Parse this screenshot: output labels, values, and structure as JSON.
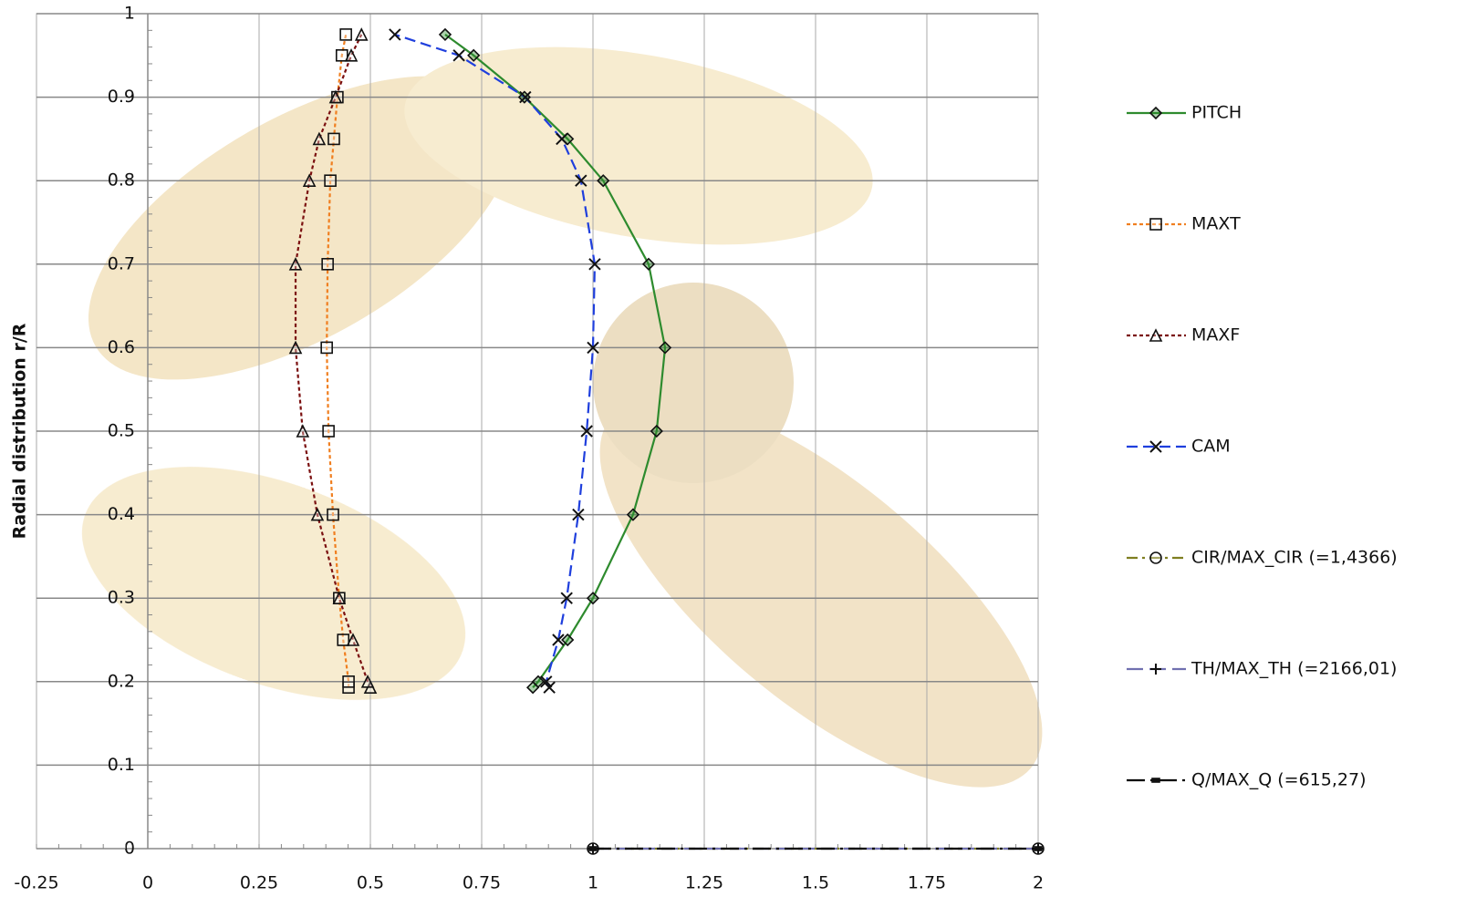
{
  "chart_data": {
    "type": "line",
    "y_label": "Radial distribution r/R",
    "xlim": [
      -0.25,
      2
    ],
    "xticks": [
      -0.25,
      0,
      0.25,
      0.5,
      0.75,
      1,
      1.25,
      1.5,
      1.75,
      2
    ],
    "ylim": [
      0,
      1
    ],
    "yticks": [
      0,
      0.1,
      0.2,
      0.3,
      0.4,
      0.5,
      0.6,
      0.7,
      0.8,
      0.9,
      1
    ],
    "grid": true,
    "legend": "right",
    "series": [
      {
        "name": "PITCH",
        "color": "#2e8b2e",
        "marker": "diamond",
        "dash": "solid",
        "x": [
          0.865,
          0.877,
          0.943,
          1.0,
          1.09,
          1.143,
          1.162,
          1.125,
          1.023,
          0.943,
          0.846,
          0.732,
          0.668
        ],
        "values": [
          0.193,
          0.2,
          0.25,
          0.3,
          0.4,
          0.5,
          0.6,
          0.7,
          0.8,
          0.85,
          0.9,
          0.95,
          0.975
        ]
      },
      {
        "name": "MAXT",
        "color": "#f07f20",
        "marker": "square",
        "dash": "dot",
        "x": [
          0.451,
          0.451,
          0.439,
          0.43,
          0.416,
          0.406,
          0.402,
          0.404,
          0.41,
          0.418,
          0.426,
          0.436,
          0.445
        ],
        "values": [
          0.193,
          0.2,
          0.25,
          0.3,
          0.4,
          0.5,
          0.6,
          0.7,
          0.8,
          0.85,
          0.9,
          0.95,
          0.975
        ]
      },
      {
        "name": "MAXF",
        "color": "#7b1010",
        "marker": "triangle",
        "dash": "dot",
        "x": [
          0.5,
          0.494,
          0.461,
          0.43,
          0.381,
          0.348,
          0.332,
          0.332,
          0.363,
          0.385,
          0.422,
          0.457,
          0.48
        ],
        "values": [
          0.193,
          0.2,
          0.25,
          0.3,
          0.4,
          0.5,
          0.6,
          0.7,
          0.8,
          0.85,
          0.9,
          0.95,
          0.975
        ]
      },
      {
        "name": "CAM",
        "color": "#1f3fdd",
        "marker": "x",
        "dash": "dash",
        "x": [
          0.902,
          0.895,
          0.922,
          0.941,
          0.967,
          0.986,
          1.0,
          1.004,
          0.973,
          0.93,
          0.848,
          0.699,
          0.555
        ],
        "values": [
          0.193,
          0.2,
          0.25,
          0.3,
          0.4,
          0.5,
          0.6,
          0.7,
          0.8,
          0.85,
          0.9,
          0.95,
          0.975
        ]
      },
      {
        "name": "CIR/MAX_CIR (=1,4366)",
        "color": "#7f7f20",
        "marker": "circle",
        "dash": "dashdot",
        "x": [
          1,
          2
        ],
        "values": [
          0,
          0
        ]
      },
      {
        "name": "TH/MAX_TH (=2166,01)",
        "color": "#7070b0",
        "marker": "plus",
        "dash": "longdash",
        "x": [
          1,
          2
        ],
        "values": [
          0,
          0
        ]
      },
      {
        "name": "Q/MAX_Q (=615,27)",
        "color": "#000000",
        "marker": "dash",
        "dash": "longdashdot",
        "x": [
          1,
          2
        ],
        "values": [
          0,
          0
        ]
      }
    ]
  }
}
